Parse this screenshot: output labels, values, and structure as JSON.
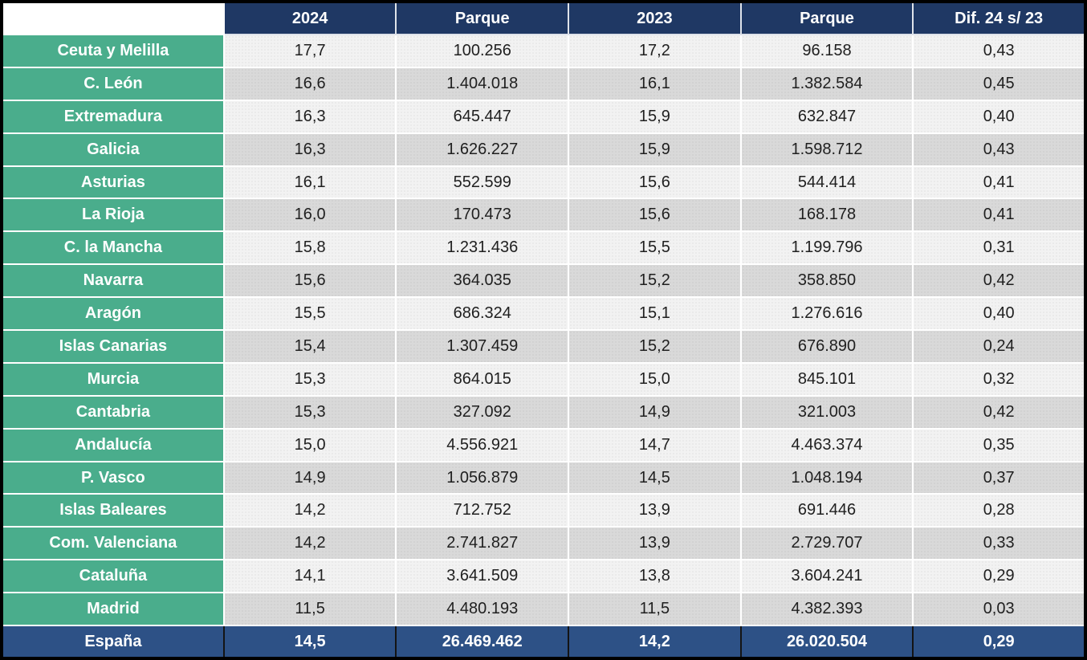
{
  "chart_data": {
    "type": "table",
    "columns": [
      "",
      "2024",
      "Parque",
      "2023",
      "Parque",
      "Dif. 24 s/ 23"
    ],
    "rows": [
      {
        "region": "Ceuta y Melilla",
        "rate_2024": "17,7",
        "parque_2024": "100.256",
        "rate_2023": "17,2",
        "parque_2023": "96.158",
        "dif": "0,43"
      },
      {
        "region": "C. León",
        "rate_2024": "16,6",
        "parque_2024": "1.404.018",
        "rate_2023": "16,1",
        "parque_2023": "1.382.584",
        "dif": "0,45"
      },
      {
        "region": "Extremadura",
        "rate_2024": "16,3",
        "parque_2024": "645.447",
        "rate_2023": "15,9",
        "parque_2023": "632.847",
        "dif": "0,40"
      },
      {
        "region": "Galicia",
        "rate_2024": "16,3",
        "parque_2024": "1.626.227",
        "rate_2023": "15,9",
        "parque_2023": "1.598.712",
        "dif": "0,43"
      },
      {
        "region": "Asturias",
        "rate_2024": "16,1",
        "parque_2024": "552.599",
        "rate_2023": "15,6",
        "parque_2023": "544.414",
        "dif": "0,41"
      },
      {
        "region": "La Rioja",
        "rate_2024": "16,0",
        "parque_2024": "170.473",
        "rate_2023": "15,6",
        "parque_2023": "168.178",
        "dif": "0,41"
      },
      {
        "region": "C. la Mancha",
        "rate_2024": "15,8",
        "parque_2024": "1.231.436",
        "rate_2023": "15,5",
        "parque_2023": "1.199.796",
        "dif": "0,31"
      },
      {
        "region": "Navarra",
        "rate_2024": "15,6",
        "parque_2024": "364.035",
        "rate_2023": "15,2",
        "parque_2023": "358.850",
        "dif": "0,42"
      },
      {
        "region": "Aragón",
        "rate_2024": "15,5",
        "parque_2024": "686.324",
        "rate_2023": "15,1",
        "parque_2023": "1.276.616",
        "dif": "0,40"
      },
      {
        "region": "Islas Canarias",
        "rate_2024": "15,4",
        "parque_2024": "1.307.459",
        "rate_2023": "15,2",
        "parque_2023": "676.890",
        "dif": "0,24"
      },
      {
        "region": "Murcia",
        "rate_2024": "15,3",
        "parque_2024": "864.015",
        "rate_2023": "15,0",
        "parque_2023": "845.101",
        "dif": "0,32"
      },
      {
        "region": "Cantabria",
        "rate_2024": "15,3",
        "parque_2024": "327.092",
        "rate_2023": "14,9",
        "parque_2023": "321.003",
        "dif": "0,42"
      },
      {
        "region": "Andalucía",
        "rate_2024": "15,0",
        "parque_2024": "4.556.921",
        "rate_2023": "14,7",
        "parque_2023": "4.463.374",
        "dif": "0,35"
      },
      {
        "region": "P. Vasco",
        "rate_2024": "14,9",
        "parque_2024": "1.056.879",
        "rate_2023": "14,5",
        "parque_2023": "1.048.194",
        "dif": "0,37"
      },
      {
        "region": "Islas Baleares",
        "rate_2024": "14,2",
        "parque_2024": "712.752",
        "rate_2023": "13,9",
        "parque_2023": "691.446",
        "dif": "0,28"
      },
      {
        "region": "Com. Valenciana",
        "rate_2024": "14,2",
        "parque_2024": "2.741.827",
        "rate_2023": "13,9",
        "parque_2023": "2.729.707",
        "dif": "0,33"
      },
      {
        "region": "Cataluña",
        "rate_2024": "14,1",
        "parque_2024": "3.641.509",
        "rate_2023": "13,8",
        "parque_2023": "3.604.241",
        "dif": "0,29"
      },
      {
        "region": "Madrid",
        "rate_2024": "11,5",
        "parque_2024": "4.480.193",
        "rate_2023": "11,5",
        "parque_2023": "4.382.393",
        "dif": "0,03"
      }
    ],
    "total_row": {
      "region": "España",
      "rate_2024": "14,5",
      "parque_2024": "26.469.462",
      "rate_2023": "14,2",
      "parque_2023": "26.020.504",
      "dif": "0,29"
    }
  },
  "colors": {
    "header_bg": "#1f3864",
    "total_bg": "#2d5186",
    "region_bg": "#4aad8c",
    "row_light": "#f2f2f2",
    "row_dark": "#d9d9d9",
    "outer_border": "#000000"
  }
}
